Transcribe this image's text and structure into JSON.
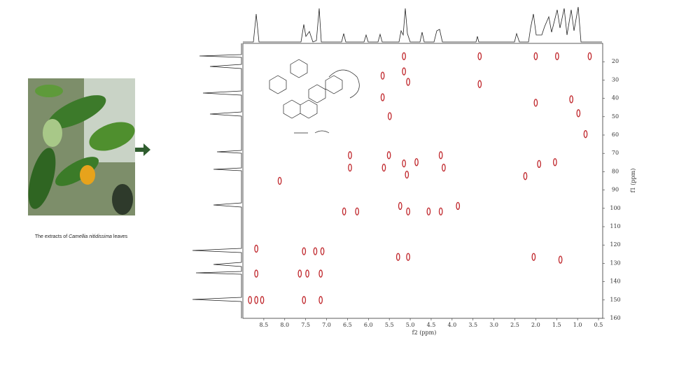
{
  "caption": {
    "before": "The extracts of ",
    "italic": "Camellia nitidissima",
    "after": " leaves"
  },
  "chart_data": {
    "type": "scatter",
    "x_label": "f2 (ppm)",
    "y_label": "f1 (ppm)",
    "x": [
      8.68,
      8.68,
      8.68,
      8.83,
      8.54,
      7.54,
      7.54,
      7.64,
      7.46,
      7.27,
      7.1,
      7.14,
      7.14,
      8.12,
      6.44,
      6.44,
      6.58,
      6.27,
      5.51,
      5.63,
      5.66,
      5.66,
      5.49,
      5.15,
      5.15,
      5.05,
      5.29,
      5.05,
      5.24,
      5.05,
      5.15,
      5.08,
      4.85,
      4.56,
      4.27,
      4.27,
      4.2,
      3.86,
      3.34,
      3.34,
      2.25,
      2.0,
      1.49,
      0.71,
      1.41,
      2.05,
      1.15,
      0.98,
      0.81,
      1.54,
      1.92,
      2.0
    ],
    "series": [
      {
        "color": "#c0282d",
        "values": [
          122,
          135.6,
          150,
          150,
          150,
          123.4,
          150,
          135.6,
          135.6,
          123.4,
          123.4,
          135.6,
          150,
          85,
          71,
          77.8,
          101.7,
          101.7,
          71,
          77.8,
          27.6,
          39.4,
          49.7,
          17,
          25.3,
          31,
          126.5,
          126.5,
          98.7,
          101.7,
          75.5,
          81.6,
          74.8,
          101.7,
          101.7,
          71,
          77.8,
          98.7,
          17,
          32.2,
          82.4,
          17,
          17,
          17,
          128,
          126.5,
          40.5,
          48.1,
          59.5,
          74.8,
          75.8,
          42.4
        ]
      }
    ],
    "xlim": [
      9,
      0.4
    ],
    "ylim": [
      10,
      160
    ],
    "xticks": [
      8.5,
      {
        "value": 8.0,
        "label": "8.0"
      },
      7.5,
      {
        "value": 7.0,
        "label": "7.0"
      },
      6.5,
      {
        "value": 6.0,
        "label": "6.0"
      },
      5.5,
      {
        "value": 5.0,
        "label": "5.0"
      },
      4.5,
      {
        "value": 4.0,
        "label": "4.0"
      },
      3.5,
      {
        "value": 3.0,
        "label": "3.0"
      },
      2.5,
      {
        "value": 2.0,
        "label": "2.0"
      },
      1.5,
      {
        "value": 1.0,
        "label": "1.0"
      },
      0.5
    ],
    "yticks": [
      20,
      30,
      40,
      50,
      60,
      70,
      80,
      90,
      100,
      110,
      120,
      130,
      140,
      150,
      160
    ]
  }
}
